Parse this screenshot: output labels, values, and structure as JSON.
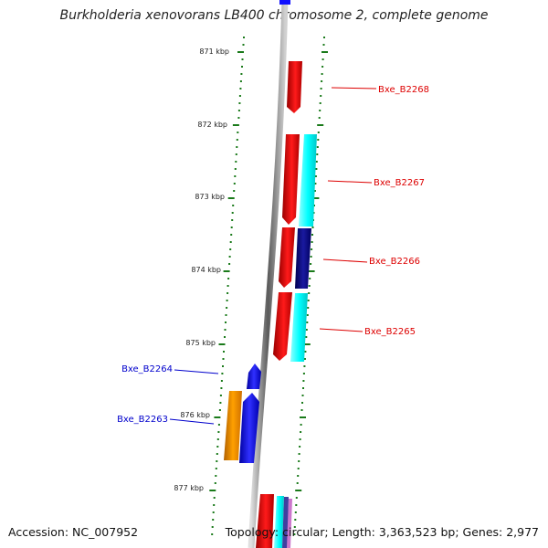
{
  "title": "Burkholderia xenovorans LB400 chromosome 2, complete genome",
  "accession_text": "Accession: NC_007952",
  "summary_text": "Topology: circular; Length: 3,363,523 bp; Genes: 2,977",
  "colors": {
    "backbone": "#8a8a8a",
    "tick": "#1a7a1a",
    "label_red": "#dd0000",
    "label_blue": "#0000cc",
    "red": "#ff0000",
    "cyan": "#00ffff",
    "navy": "#000080",
    "blue": "#0000ff",
    "orange": "#ff9900"
  },
  "kbp_labels": [
    "871 kbp",
    "872 kbp",
    "873 kbp",
    "874 kbp",
    "875 kbp",
    "876 kbp",
    "877 kbp"
  ],
  "gene_labels": [
    "Bxe_B2268",
    "Bxe_B2267",
    "Bxe_B2266",
    "Bxe_B2265",
    "Bxe_B2264",
    "Bxe_B2263"
  ]
}
